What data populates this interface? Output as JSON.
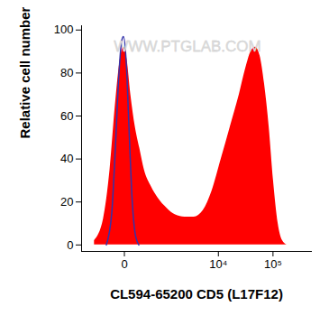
{
  "chart_data": {
    "type": "histogram",
    "xlabel": "CL594-65200 CD5 (L17F12)",
    "ylabel": "Relative cell number",
    "annotations": [
      {
        "text": "WWW.PTGLAB.COM"
      }
    ],
    "log": "x",
    "xlim": [
      -1000,
      500000
    ],
    "xticks": [
      0,
      {
        "value": 10000,
        "label": "10⁴"
      },
      {
        "value": 100000,
        "label": "10⁵"
      }
    ],
    "ylim": [
      -3,
      102
    ],
    "yticks": [
      0,
      20,
      40,
      60,
      80,
      100
    ],
    "grid": false,
    "series": [
      {
        "type": "area",
        "color": "#ff0000",
        "x": [
          -500,
          -280,
          -165,
          -92,
          -42,
          -8,
          24,
          61,
          115,
          180,
          260,
          420,
          610,
          1000,
          1500,
          2300,
          3500,
          5200,
          7600,
          11300,
          16600,
          24300,
          31700,
          39800,
          48000,
          58000,
          70000,
          85000,
          102000,
          124000,
          149000,
          180000
        ],
        "values": [
          2,
          12,
          35,
          65,
          85,
          92,
          86,
          70,
          55,
          45,
          35,
          27,
          22,
          17,
          14,
          13,
          13,
          16,
          25,
          40,
          55,
          70,
          82,
          90,
          92,
          88,
          75,
          55,
          30,
          10,
          2,
          0
        ]
      },
      {
        "type": "line",
        "color": "#3333aa",
        "x": [
          -226,
          -139,
          -92,
          -51,
          -24,
          -8,
          16,
          42,
          71,
          115,
          166
        ],
        "values": [
          0,
          15,
          45,
          80,
          95,
          97,
          85,
          55,
          25,
          5,
          0
        ]
      }
    ]
  }
}
